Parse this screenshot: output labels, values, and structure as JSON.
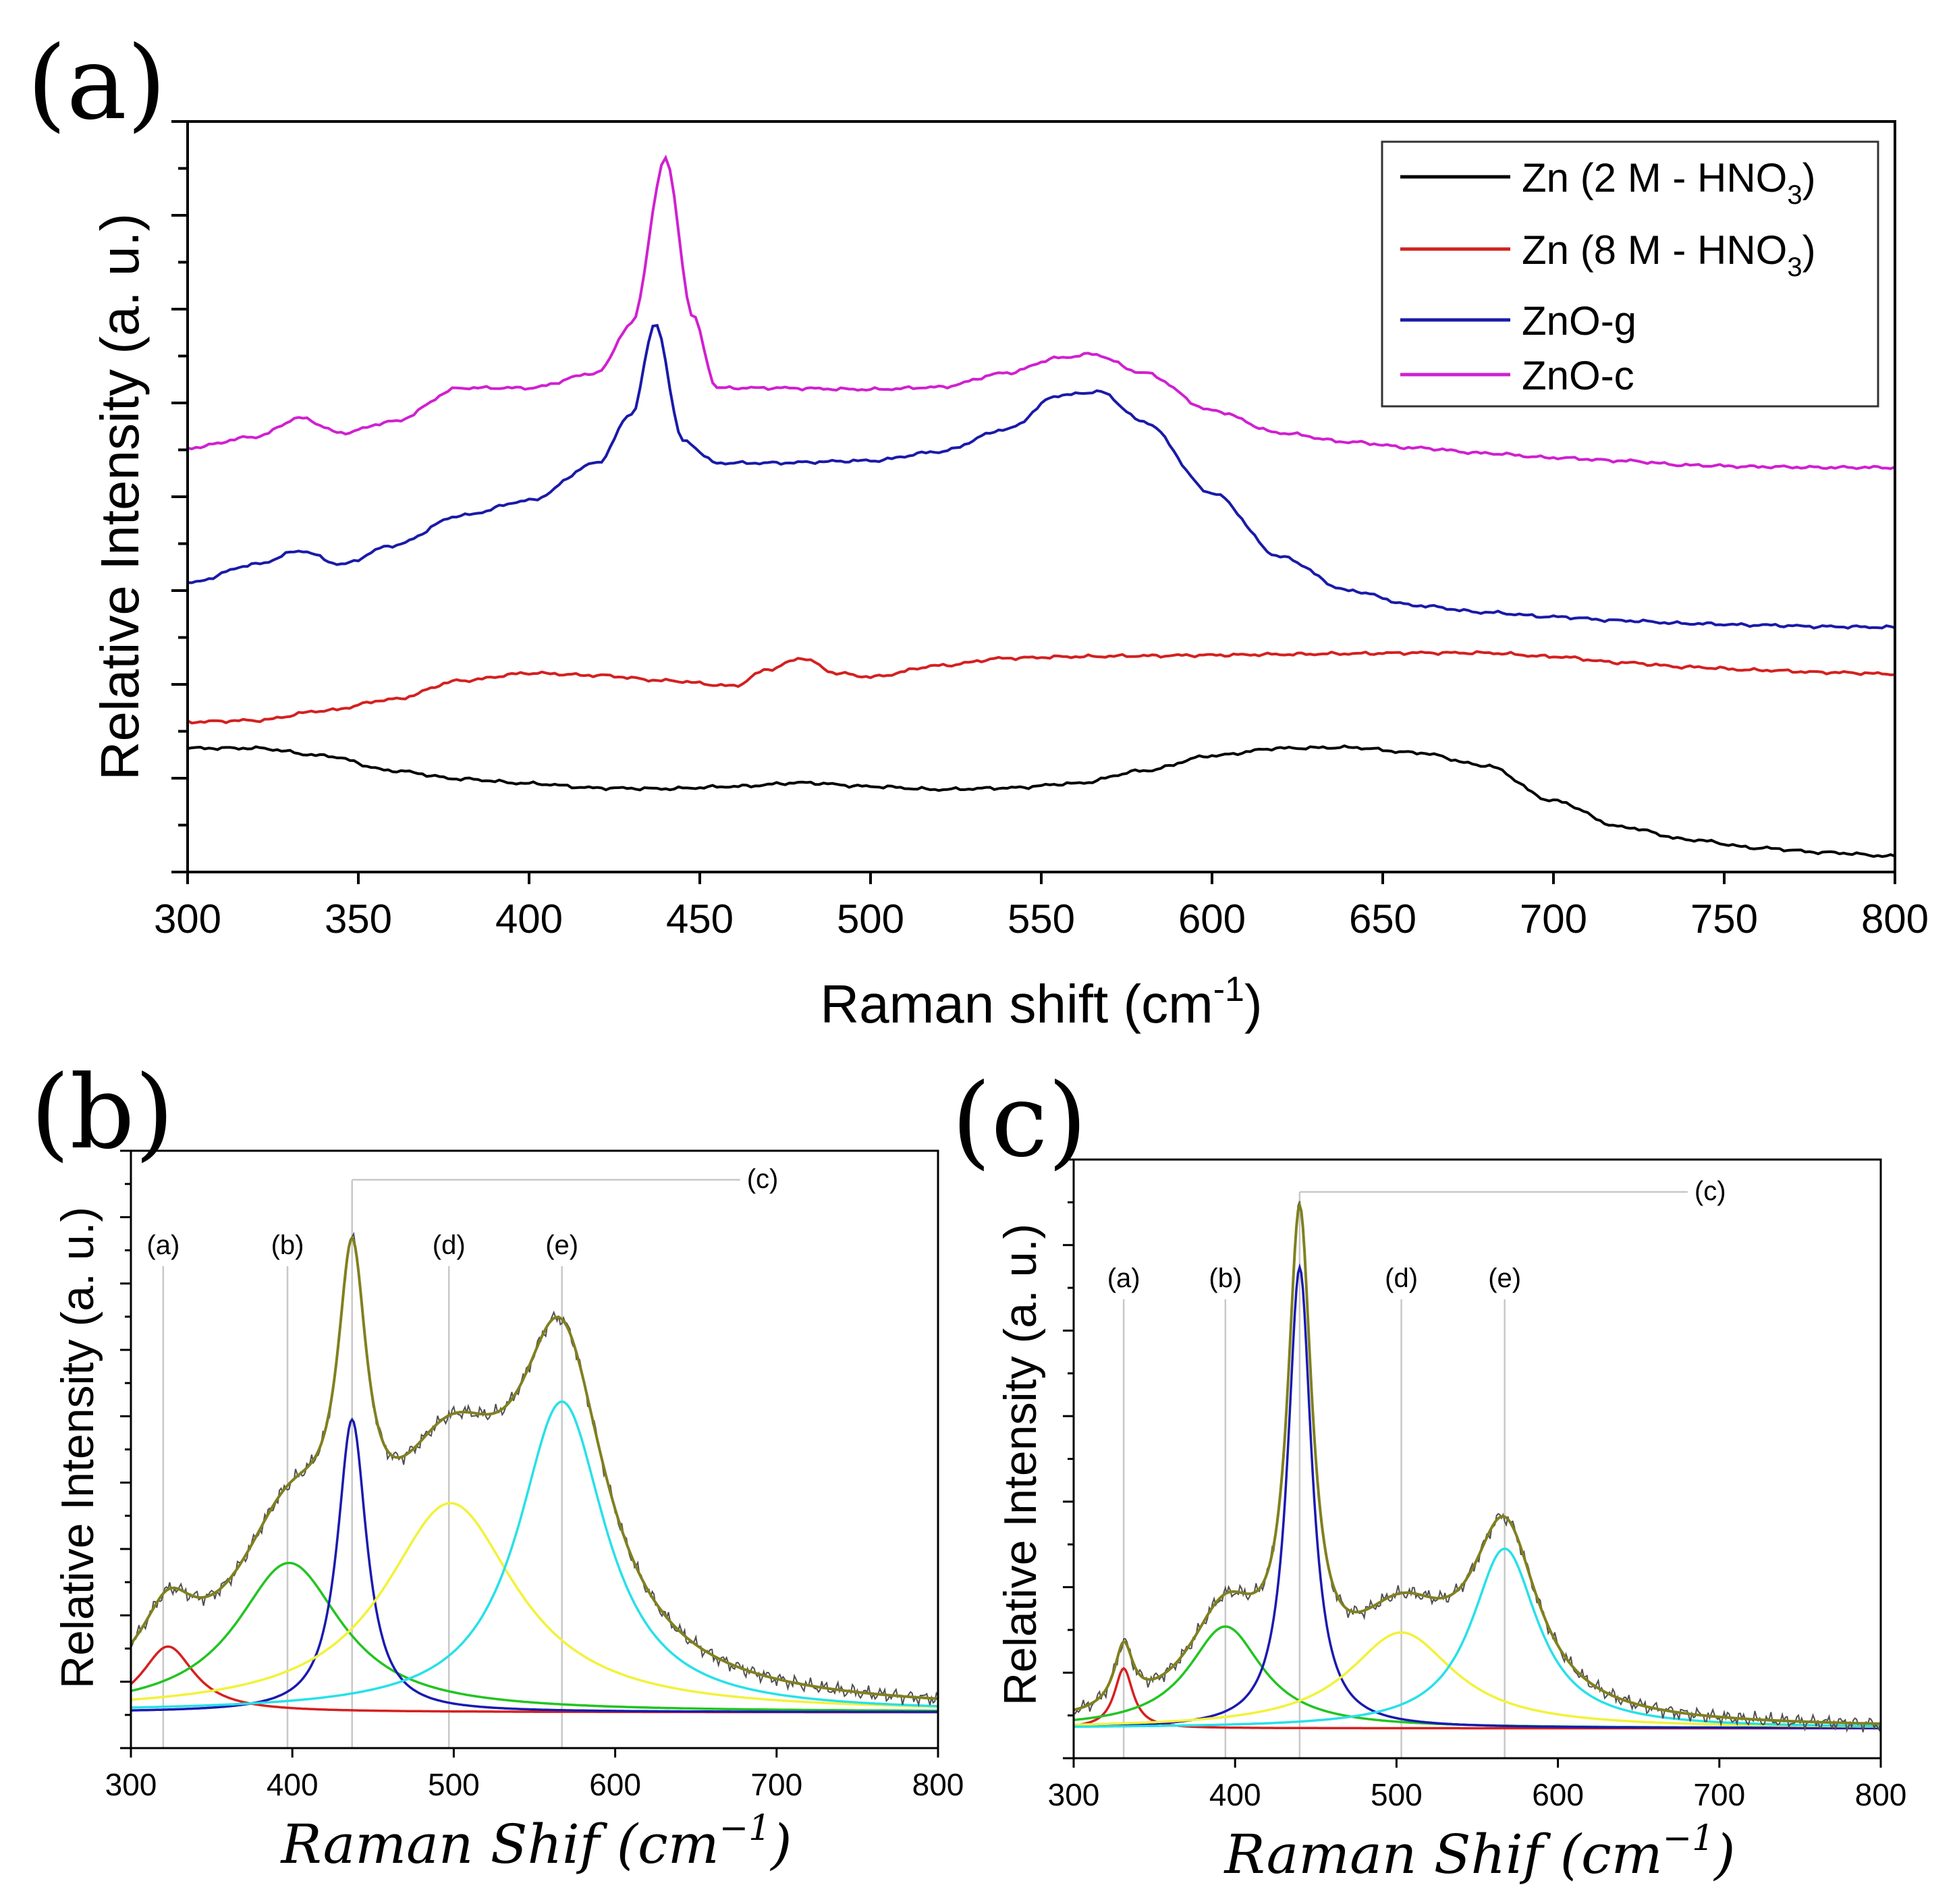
{
  "chart_data": [
    {
      "panel": "(a)",
      "type": "line",
      "xlabel": "Raman shift (cm",
      "xlabel_sup": "-1",
      "xlabel_end": ")",
      "ylabel": "Relative Intensity (a. u.)",
      "xlim": [
        300,
        800
      ],
      "ylim": [
        0,
        100
      ],
      "xticks": [
        300,
        350,
        400,
        450,
        500,
        550,
        600,
        650,
        700,
        750,
        800
      ],
      "legend_position": "top-right",
      "series": [
        {
          "name": "Zn (2 M - HNO3)",
          "legend_main": "Zn (2 M - HNO",
          "legend_sub": "3",
          "legend_end": ")",
          "color": "#000000",
          "x": [
            300,
            320,
            340,
            360,
            380,
            400,
            420,
            440,
            460,
            480,
            500,
            520,
            540,
            560,
            580,
            600,
            620,
            640,
            660,
            680,
            700,
            720,
            740,
            760,
            780,
            800
          ],
          "y": [
            16.5,
            16.5,
            15.5,
            13.5,
            12.4,
            11.8,
            11.2,
            11.1,
            11.4,
            11.9,
            11.4,
            11.0,
            11.2,
            11.8,
            13.5,
            15.5,
            16.5,
            16.6,
            15.9,
            14.2,
            9.5,
            6.0,
            4.3,
            3.2,
            2.6,
            2.1
          ]
        },
        {
          "name": "Zn (8 M - HNO3)",
          "legend_main": "Zn (8 M - HNO",
          "legend_sub": "3",
          "legend_end": ")",
          "color": "#d42020",
          "x": [
            300,
            320,
            340,
            360,
            380,
            400,
            420,
            440,
            460,
            470,
            480,
            490,
            500,
            520,
            540,
            560,
            580,
            600,
            620,
            640,
            660,
            680,
            700,
            720,
            740,
            760,
            780,
            800
          ],
          "y": [
            20.0,
            20.2,
            21.5,
            23.0,
            25.5,
            26.5,
            26.2,
            25.5,
            24.8,
            27.0,
            28.5,
            26.5,
            26.0,
            27.5,
            28.5,
            28.7,
            28.8,
            28.9,
            29.0,
            29.1,
            29.2,
            29.2,
            28.7,
            27.9,
            27.3,
            26.9,
            26.6,
            26.4
          ]
        },
        {
          "name": "ZnO-g",
          "legend_main": "ZnO-g",
          "color": "#1a1aa8",
          "x": [
            300,
            320,
            333,
            345,
            360,
            380,
            400,
            420,
            430,
            437,
            445,
            455,
            470,
            500,
            520,
            540,
            555,
            567,
            580,
            600,
            620,
            640,
            660,
            680,
            700,
            720,
            740,
            760,
            780,
            800
          ],
          "y": [
            38.5,
            41.0,
            42.8,
            41.0,
            43.5,
            47.5,
            49.5,
            54.5,
            61.0,
            73.0,
            57.5,
            54.5,
            54.5,
            54.8,
            56.0,
            59.0,
            63.5,
            64.0,
            60.0,
            50.5,
            42.0,
            37.5,
            35.5,
            34.6,
            34.0,
            33.5,
            33.1,
            32.9,
            32.7,
            32.6
          ]
        },
        {
          "name": "ZnO-c",
          "legend_main": "ZnO-c",
          "color": "#d020d0",
          "x": [
            300,
            320,
            333,
            345,
            360,
            380,
            400,
            420,
            430,
            440,
            448,
            455,
            470,
            500,
            520,
            540,
            555,
            565,
            580,
            600,
            620,
            640,
            660,
            680,
            700,
            720,
            740,
            760,
            780,
            800
          ],
          "y": [
            56.5,
            58.0,
            60.5,
            58.5,
            60.0,
            64.5,
            64.5,
            66.5,
            73.0,
            95.0,
            74.0,
            64.5,
            64.5,
            64.3,
            64.6,
            66.5,
            68.5,
            69.0,
            66.5,
            61.5,
            58.5,
            57.3,
            56.5,
            55.8,
            55.2,
            54.8,
            54.2,
            54.0,
            53.9,
            53.9
          ]
        }
      ]
    },
    {
      "panel": "(b)",
      "type": "line",
      "xlabel": "Raman Shif (cm",
      "xlabel_sup": "−1",
      "xlabel_end": ")",
      "ylabel": "Relative Intensity (a. u.)",
      "xlim": [
        300,
        800
      ],
      "ylim": [
        0,
        100
      ],
      "xticks": [
        300,
        400,
        500,
        600,
        700,
        800
      ],
      "peak_labels": [
        {
          "label": "(a)",
          "x": 320
        },
        {
          "label": "(b)",
          "x": 397
        },
        {
          "label": "(c)",
          "x": 437
        },
        {
          "label": "(d)",
          "x": 497
        },
        {
          "label": "(e)",
          "x": 567
        }
      ],
      "components": [
        {
          "name": "peak-a",
          "color": "#d62020",
          "center": 323,
          "amplitude": 11,
          "hwhm": 20
        },
        {
          "name": "peak-b",
          "color": "#22c422",
          "center": 398,
          "amplitude": 25,
          "hwhm": 40
        },
        {
          "name": "peak-c",
          "color": "#1a1ab0",
          "center": 437,
          "amplitude": 49,
          "hwhm": 11
        },
        {
          "name": "peak-d",
          "color": "#f2f23a",
          "center": 498,
          "amplitude": 35,
          "hwhm": 50
        },
        {
          "name": "peak-e",
          "color": "#28e0e8",
          "center": 567,
          "amplitude": 52,
          "hwhm": 33
        }
      ],
      "baseline": 6,
      "fit_color": "#808020",
      "raw_color": "#505050"
    },
    {
      "panel": "(c)",
      "type": "line",
      "xlabel": "Raman Shif (cm",
      "xlabel_sup": "−1",
      "xlabel_end": ")",
      "ylabel": "Relative Intensity (a. u.)",
      "xlim": [
        300,
        800
      ],
      "ylim": [
        0,
        100
      ],
      "xticks": [
        300,
        400,
        500,
        600,
        700,
        800
      ],
      "peak_labels": [
        {
          "label": "(a)",
          "x": 331
        },
        {
          "label": "(b)",
          "x": 394
        },
        {
          "label": "(c)",
          "x": 440
        },
        {
          "label": "(d)",
          "x": 503
        },
        {
          "label": "(e)",
          "x": 567
        }
      ],
      "components": [
        {
          "name": "peak-a",
          "color": "#d62020",
          "center": 331,
          "amplitude": 10,
          "hwhm": 7
        },
        {
          "name": "peak-b",
          "color": "#22c422",
          "center": 394,
          "amplitude": 17,
          "hwhm": 28
        },
        {
          "name": "peak-c",
          "color": "#1a1ab0",
          "center": 440,
          "amplitude": 77,
          "hwhm": 9
        },
        {
          "name": "peak-d",
          "color": "#f2f23a",
          "center": 503,
          "amplitude": 16,
          "hwhm": 40
        },
        {
          "name": "peak-e",
          "color": "#28e0e8",
          "center": 567,
          "amplitude": 30,
          "hwhm": 25
        }
      ],
      "baseline": 5,
      "fit_color": "#808020",
      "raw_color": "#505050"
    }
  ]
}
